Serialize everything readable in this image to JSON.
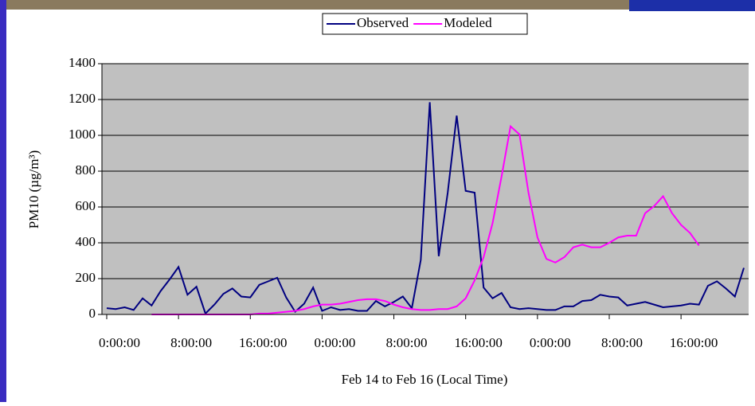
{
  "chart_data": {
    "type": "line",
    "x_label": "Feb 14 to Feb 16 (Local Time)",
    "y_label": "PM10 (µg/m³)",
    "x": [
      0,
      1,
      2,
      3,
      4,
      5,
      6,
      7,
      8,
      9,
      10,
      11,
      12,
      13,
      14,
      15,
      16,
      17,
      18,
      19,
      20,
      21,
      22,
      23,
      24,
      25,
      26,
      27,
      28,
      29,
      30,
      31,
      32,
      33,
      34,
      35,
      36,
      37,
      38,
      39,
      40,
      41,
      42,
      43,
      44,
      45,
      46,
      47,
      48,
      49,
      50,
      51,
      52,
      53,
      54,
      55,
      56,
      57,
      58,
      59,
      60,
      61,
      62,
      63,
      64,
      65,
      66,
      67,
      68,
      69,
      70,
      71
    ],
    "series": [
      {
        "name": "Observed",
        "color": "#000080",
        "values": [
          35,
          30,
          40,
          25,
          90,
          50,
          130,
          195,
          265,
          110,
          155,
          5,
          55,
          115,
          145,
          100,
          95,
          165,
          185,
          205,
          95,
          15,
          60,
          150,
          20,
          40,
          25,
          30,
          20,
          20,
          75,
          45,
          70,
          100,
          35,
          305,
          1185,
          325,
          680,
          1110,
          690,
          680,
          150,
          90,
          120,
          40,
          30,
          35,
          30,
          25,
          25,
          45,
          45,
          75,
          80,
          110,
          100,
          95,
          50,
          60,
          70,
          55,
          40,
          45,
          50,
          60,
          55,
          160,
          185,
          145,
          100,
          260
        ]
      },
      {
        "name": "Modeled",
        "color": "#ff00ff",
        "values": [
          null,
          null,
          null,
          null,
          null,
          0,
          0,
          0,
          0,
          0,
          0,
          0,
          0,
          0,
          0,
          0,
          0,
          5,
          5,
          10,
          15,
          20,
          30,
          45,
          55,
          55,
          60,
          70,
          80,
          85,
          85,
          75,
          55,
          40,
          30,
          25,
          25,
          30,
          30,
          45,
          90,
          190,
          320,
          510,
          770,
          1050,
          1005,
          680,
          430,
          310,
          290,
          320,
          375,
          390,
          375,
          375,
          400,
          430,
          440,
          440,
          565,
          605,
          660,
          565,
          500,
          455,
          385,
          null,
          null,
          null,
          null,
          null
        ]
      }
    ],
    "xlim": [
      0,
      71
    ],
    "xticks": [
      {
        "value": 0,
        "label": "0:00:00"
      },
      {
        "value": 8,
        "label": "8:00:00"
      },
      {
        "value": 16,
        "label": "16:00:00"
      },
      {
        "value": 24,
        "label": "0:00:00"
      },
      {
        "value": 32,
        "label": "8:00:00"
      },
      {
        "value": 40,
        "label": "16:00:00"
      },
      {
        "value": 48,
        "label": "0:00:00"
      },
      {
        "value": 56,
        "label": "8:00:00"
      },
      {
        "value": 64,
        "label": "16:00:00"
      }
    ],
    "ylim": [
      0,
      1400
    ],
    "yticks": [
      0,
      200,
      400,
      600,
      800,
      1000,
      1200,
      1400
    ],
    "grid": true,
    "legend": "top"
  }
}
